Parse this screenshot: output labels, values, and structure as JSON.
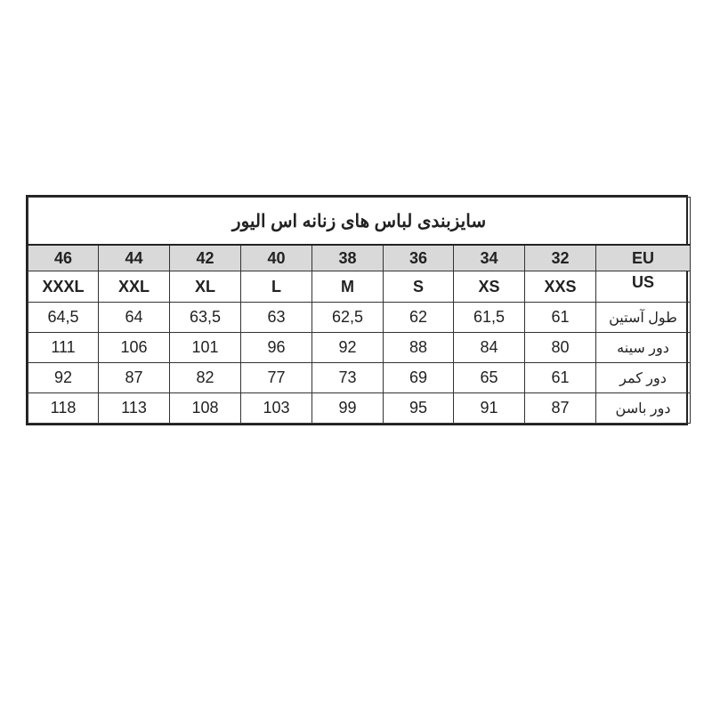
{
  "title": "سایزبندی لباس های زنانه  اس الیور",
  "eu": {
    "label": "EU",
    "values": [
      "46",
      "44",
      "42",
      "40",
      "38",
      "36",
      "34",
      "32"
    ]
  },
  "us": {
    "label": "US",
    "values": [
      "XXXL",
      "XXL",
      "XL",
      "L",
      "M",
      "S",
      "XS",
      "XXS"
    ]
  },
  "rows": [
    {
      "label": "طول آستین",
      "values": [
        "64,5",
        "64",
        "63,5",
        "63",
        "62,5",
        "62",
        "61,5",
        "61"
      ]
    },
    {
      "label": "دور سینه",
      "values": [
        "111",
        "106",
        "101",
        "96",
        "92",
        "88",
        "84",
        "80"
      ]
    },
    {
      "label": "دور کمر",
      "values": [
        "92",
        "87",
        "82",
        "77",
        "73",
        "69",
        "65",
        "61"
      ]
    },
    {
      "label": "دور باسن",
      "values": [
        "118",
        "113",
        "108",
        "103",
        "99",
        "95",
        "91",
        "87"
      ]
    }
  ],
  "colors": {
    "header_bg": "#d9d9d9",
    "border": "#222222"
  }
}
